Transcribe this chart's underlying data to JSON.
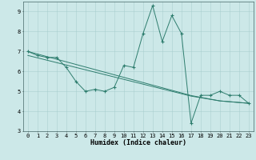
{
  "xlabel": "Humidex (Indice chaleur)",
  "x_values": [
    0,
    1,
    2,
    3,
    4,
    5,
    6,
    7,
    8,
    9,
    10,
    11,
    12,
    13,
    14,
    15,
    16,
    17,
    18,
    19,
    20,
    21,
    22,
    23
  ],
  "y_main": [
    7.0,
    6.8,
    6.7,
    6.7,
    6.2,
    5.5,
    5.0,
    5.1,
    5.0,
    5.2,
    6.3,
    6.2,
    7.9,
    9.3,
    7.5,
    8.8,
    7.9,
    3.4,
    4.8,
    4.8,
    5.0,
    4.8,
    4.8,
    4.4
  ],
  "y_trend1": [
    7.0,
    6.87,
    6.74,
    6.61,
    6.48,
    6.35,
    6.22,
    6.09,
    5.96,
    5.83,
    5.7,
    5.57,
    5.44,
    5.31,
    5.18,
    5.05,
    4.92,
    4.79,
    4.7,
    4.61,
    4.52,
    4.48,
    4.44,
    4.4
  ],
  "y_trend2": [
    6.8,
    6.68,
    6.56,
    6.44,
    6.32,
    6.2,
    6.08,
    5.96,
    5.84,
    5.72,
    5.6,
    5.48,
    5.36,
    5.24,
    5.12,
    5.0,
    4.88,
    4.76,
    4.68,
    4.6,
    4.52,
    4.48,
    4.44,
    4.4
  ],
  "line_color": "#2e7d6e",
  "bg_color": "#cce8e8",
  "grid_color": "#aacfcf",
  "ylim": [
    3,
    9.5
  ],
  "xlim": [
    -0.5,
    23.5
  ],
  "yticks": [
    3,
    4,
    5,
    6,
    7,
    8,
    9
  ],
  "tick_fontsize": 5,
  "xlabel_fontsize": 6
}
